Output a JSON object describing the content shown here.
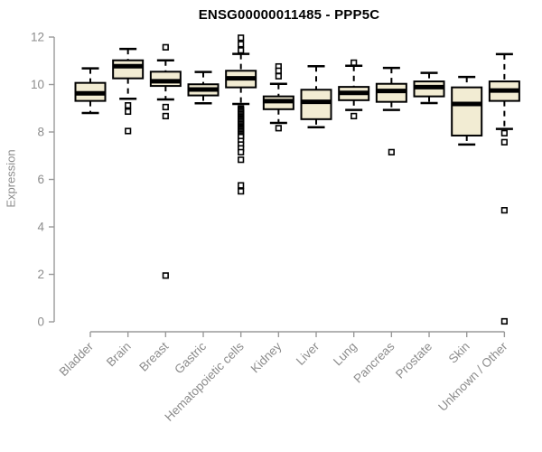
{
  "chart_data": {
    "type": "boxplot",
    "title": "ENSG00000011485 - PPP5C",
    "ylabel": "Expression",
    "xlabel": "",
    "ylim": [
      0,
      12
    ],
    "yticks": [
      0,
      2,
      4,
      6,
      8,
      10,
      12
    ],
    "grid": false,
    "legend": "none",
    "categories": [
      "Bladder",
      "Brain",
      "Breast",
      "Gastric",
      "Hematopoietic cells",
      "Kidney",
      "Liver",
      "Lung",
      "Pancreas",
      "Prostate",
      "Skin",
      "Unknown / Other"
    ],
    "series": [
      {
        "name": "Bladder",
        "whislo": 8.8,
        "q1": 9.31,
        "med": 9.63,
        "q3": 10.07,
        "whishi": 10.68,
        "outliers": []
      },
      {
        "name": "Brain",
        "whislo": 9.4,
        "q1": 10.26,
        "med": 10.77,
        "q3": 11.02,
        "whishi": 11.5,
        "outliers": [
          9.12,
          8.86,
          8.04
        ]
      },
      {
        "name": "Breast",
        "whislo": 9.37,
        "q1": 9.94,
        "med": 10.14,
        "q3": 10.54,
        "whishi": 11.02,
        "outliers": [
          11.57,
          9.05,
          8.67,
          1.95
        ]
      },
      {
        "name": "Gastric",
        "whislo": 9.21,
        "q1": 9.54,
        "med": 9.79,
        "q3": 10.01,
        "whishi": 10.53,
        "outliers": []
      },
      {
        "name": "Hematopoietic cells",
        "whislo": 9.18,
        "q1": 9.88,
        "med": 10.26,
        "q3": 10.58,
        "whishi": 11.29,
        "outliers": [
          11.97,
          11.7,
          11.44,
          8.99,
          8.93,
          8.87,
          8.81,
          8.75,
          8.69,
          8.63,
          8.57,
          8.51,
          8.45,
          8.39,
          8.33,
          8.27,
          8.21,
          8.15,
          8.09,
          8.03,
          7.97,
          7.91,
          7.85,
          7.79,
          7.62,
          7.47,
          7.31,
          7.15,
          6.83,
          5.75,
          5.5
        ]
      },
      {
        "name": "Kidney",
        "whislo": 8.38,
        "q1": 8.96,
        "med": 9.3,
        "q3": 9.5,
        "whishi": 10.03,
        "outliers": [
          10.76,
          10.58,
          10.35,
          8.16
        ]
      },
      {
        "name": "Liver",
        "whislo": 8.2,
        "q1": 8.54,
        "med": 9.27,
        "q3": 9.78,
        "whishi": 10.77,
        "outliers": []
      },
      {
        "name": "Lung",
        "whislo": 8.93,
        "q1": 9.34,
        "med": 9.65,
        "q3": 9.9,
        "whishi": 10.79,
        "outliers": [
          10.92,
          8.67
        ]
      },
      {
        "name": "Pancreas",
        "whislo": 8.93,
        "q1": 9.27,
        "med": 9.73,
        "q3": 10.03,
        "whishi": 10.7,
        "outliers": [
          7.15
        ]
      },
      {
        "name": "Prostate",
        "whislo": 9.22,
        "q1": 9.5,
        "med": 9.89,
        "q3": 10.13,
        "whishi": 10.49,
        "outliers": []
      },
      {
        "name": "Skin",
        "whislo": 7.47,
        "q1": 7.85,
        "med": 9.18,
        "q3": 9.88,
        "whishi": 10.32,
        "outliers": []
      },
      {
        "name": "Unknown / Other",
        "whislo": 8.13,
        "q1": 9.31,
        "med": 9.75,
        "q3": 10.13,
        "whishi": 11.28,
        "outliers": [
          7.95,
          7.57,
          4.7,
          0.02
        ]
      }
    ],
    "colors": {
      "box_fill": "#F2ECD3",
      "box_stroke": "#000000",
      "median": "#000000",
      "axis_line": "#9a9a9a",
      "axis_text": "#8c8c8c",
      "title": "#000000",
      "background": "#ffffff"
    }
  }
}
